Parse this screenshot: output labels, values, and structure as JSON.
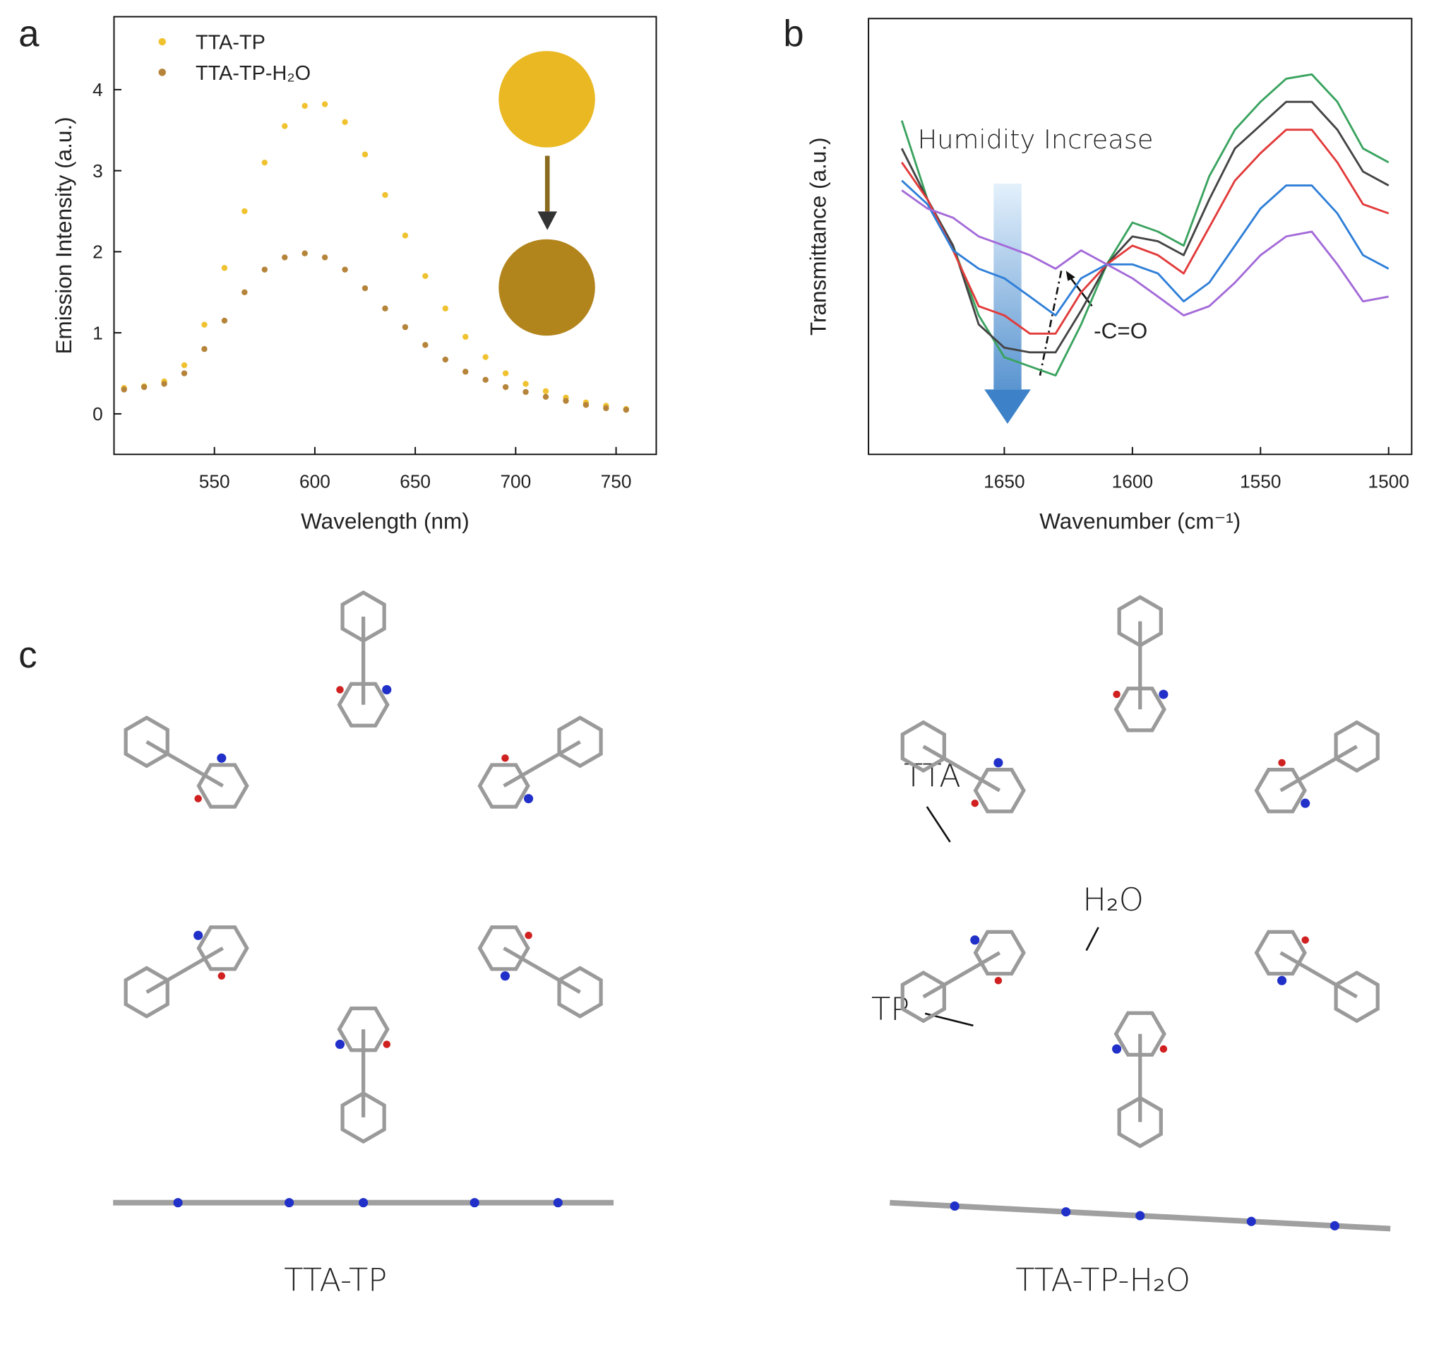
{
  "chart_data": [
    {
      "type": "scatter",
      "panel_label": "a",
      "xlabel": "Wavelength (nm)",
      "ylabel": "Emission Intensity (a.u.)",
      "xlim": [
        500,
        770
      ],
      "ylim": [
        -0.5,
        4.9
      ],
      "xticks": [
        550,
        600,
        650,
        700,
        750
      ],
      "yticks": [
        0,
        1,
        2,
        3,
        4
      ],
      "legend": "upper left",
      "x": [
        505,
        515,
        525,
        535,
        545,
        555,
        565,
        575,
        585,
        595,
        605,
        615,
        625,
        635,
        645,
        655,
        665,
        675,
        685,
        695,
        705,
        715,
        725,
        735,
        745,
        755
      ],
      "series": [
        {
          "name": "TTA-TP",
          "color": "#f0c230",
          "values": [
            0.32,
            0.34,
            0.4,
            0.6,
            1.1,
            1.8,
            2.5,
            3.1,
            3.55,
            3.8,
            3.82,
            3.6,
            3.2,
            2.7,
            2.2,
            1.7,
            1.3,
            0.95,
            0.7,
            0.5,
            0.37,
            0.28,
            0.2,
            0.14,
            0.1,
            0.06
          ]
        },
        {
          "name": "TTA-TP-H₂O",
          "color": "#b5843a",
          "values": [
            0.3,
            0.33,
            0.37,
            0.5,
            0.8,
            1.15,
            1.5,
            1.78,
            1.93,
            1.98,
            1.93,
            1.78,
            1.55,
            1.3,
            1.07,
            0.85,
            0.67,
            0.52,
            0.42,
            0.33,
            0.27,
            0.21,
            0.16,
            0.11,
            0.07,
            0.05
          ]
        }
      ]
    },
    {
      "type": "line",
      "panel_label": "b",
      "xlabel": "Wavenumber (cm⁻¹)",
      "ylabel": "Transmittance (a.u.)",
      "xlim": [
        1703,
        1491
      ],
      "ylim": [
        0,
        10
      ],
      "xticks": [
        1650,
        1600,
        1550,
        1500
      ],
      "annotations": [
        "Humidity Increase",
        "-C=O"
      ],
      "x": [
        1690,
        1680,
        1670,
        1660,
        1650,
        1640,
        1630,
        1620,
        1610,
        1600,
        1590,
        1580,
        1570,
        1560,
        1550,
        1540,
        1530,
        1520,
        1510,
        1500
      ],
      "series": [
        {
          "color": "#3aa35f",
          "values": [
            7.66,
            5.85,
            4.79,
            3.19,
            2.23,
            2.02,
            1.81,
            2.98,
            4.36,
            5.32,
            5.11,
            4.79,
            6.38,
            7.45,
            8.09,
            8.62,
            8.72,
            8.09,
            7.02,
            6.7
          ]
        },
        {
          "color": "#444444",
          "values": [
            7.02,
            5.85,
            4.79,
            2.98,
            2.45,
            2.34,
            2.34,
            3.3,
            4.36,
            5.0,
            4.89,
            4.57,
            5.85,
            7.02,
            7.55,
            8.09,
            8.09,
            7.45,
            6.49,
            6.17
          ]
        },
        {
          "color": "#e23a3a",
          "values": [
            6.7,
            5.85,
            4.68,
            3.4,
            3.19,
            2.77,
            2.77,
            3.72,
            4.36,
            4.79,
            4.57,
            4.15,
            5.21,
            6.28,
            6.91,
            7.45,
            7.45,
            6.7,
            5.74,
            5.53
          ]
        },
        {
          "color": "#2f7fd8",
          "values": [
            6.28,
            5.74,
            4.68,
            4.26,
            4.04,
            3.62,
            3.19,
            4.04,
            4.36,
            4.36,
            4.15,
            3.51,
            3.94,
            4.79,
            5.64,
            6.17,
            6.17,
            5.53,
            4.57,
            4.26
          ]
        },
        {
          "color": "#a36ad8",
          "values": [
            6.06,
            5.64,
            5.43,
            5.0,
            4.79,
            4.57,
            4.26,
            4.68,
            4.36,
            4.04,
            3.62,
            3.19,
            3.4,
            3.94,
            4.57,
            5.0,
            5.11,
            4.36,
            3.51,
            3.62
          ]
        }
      ]
    }
  ],
  "structures": {
    "panel_label": "c",
    "annotations": [
      "TTA",
      "H₂O",
      "TP"
    ],
    "captions": [
      "TTA-TP",
      "TTA-TP-H₂O"
    ]
  }
}
